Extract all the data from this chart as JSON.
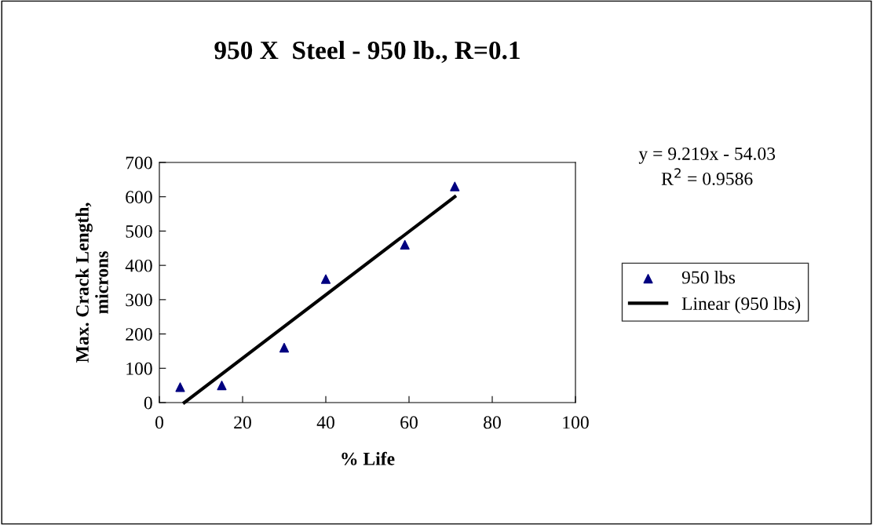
{
  "chart_data": {
    "type": "scatter",
    "title": "950 X  Steel - 950 lb., R=0.1",
    "xlabel": "% Life",
    "ylabel": "Max. Crack Length,\nmicrons",
    "x": [
      5,
      15,
      30,
      40,
      59,
      71
    ],
    "series": [
      {
        "name": "950 lbs",
        "color": "#000080",
        "values": [
          45,
          50,
          160,
          360,
          460,
          630
        ],
        "marker": "triangle"
      },
      {
        "name": "Linear (950 lbs)",
        "type": "line",
        "color": "#000000",
        "x": [
          6,
          71
        ],
        "values": [
          0,
          600
        ],
        "marker": "none",
        "line_style": "solid"
      }
    ],
    "annotations": [
      "y = 9.219x - 54.03\nR$^{2}$ = 0.9586"
    ],
    "xlim": [
      0,
      100
    ],
    "ylim": [
      0,
      700
    ],
    "xticks": [
      0,
      20,
      40,
      60,
      80,
      100
    ],
    "yticks": [
      0,
      100,
      200,
      300,
      400,
      500,
      600,
      700
    ],
    "grid": false,
    "legend": "right"
  }
}
